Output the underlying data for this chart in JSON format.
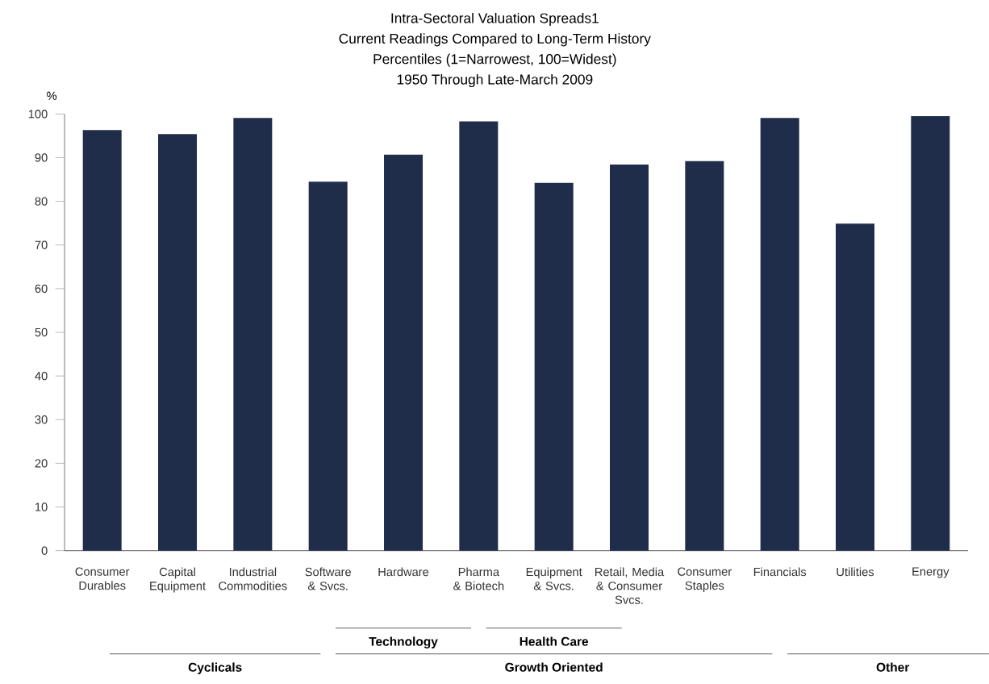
{
  "chart_data": {
    "type": "bar",
    "title": "Intra-Sectoral Valuation Spreads1",
    "subtitle": "Current Readings Compared to Long-Term History",
    "ylabel": "%",
    "categories": [
      "Consumer Durables",
      "Capital Equipment",
      "Industrial Commodities",
      "Software & Svcs.",
      "Hardware",
      "Pharma & Biotech",
      "Equipment & Svcs.",
      "Retail, Media & Consumer Svcs.",
      "Consumer Staples",
      "Financials",
      "Utilities",
      "Energy"
    ],
    "values": [
      96.3,
      95.4,
      99.1,
      84.5,
      90.7,
      98.3,
      84.2,
      88.4,
      89.2,
      99.1,
      74.9,
      99.5
    ],
    "color": "#1f2d4b",
    "ylim": [
      0,
      100
    ],
    "yticks": [
      0,
      10,
      20,
      30,
      40,
      50,
      60,
      70,
      80,
      90,
      100
    ],
    "grid": false,
    "annotations": [
      "Percentiles (1=Narrowest, 100=Widest)",
      "1950 Through Late-March 2009",
      "Technology",
      "Health Care",
      "Cyclicals",
      "Growth Oriented",
      "Other"
    ]
  }
}
